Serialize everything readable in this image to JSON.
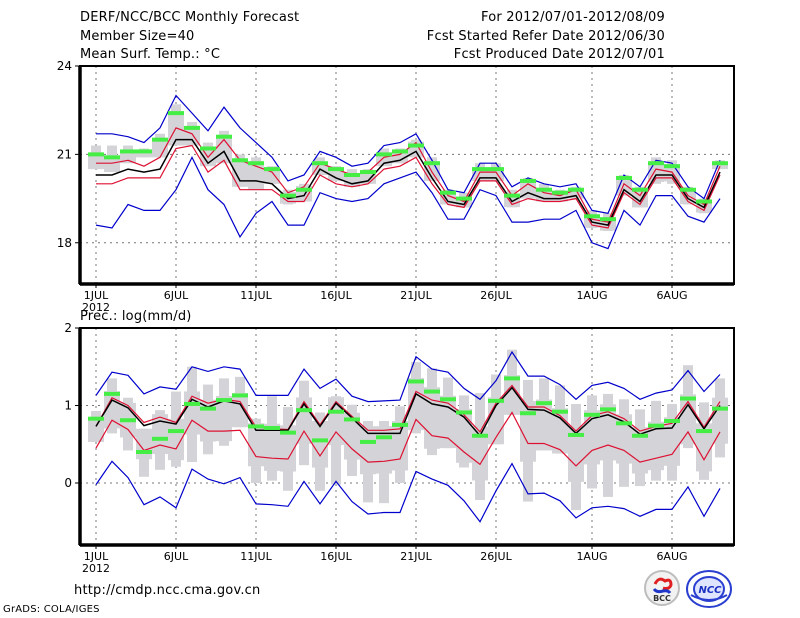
{
  "header": {
    "title": "DERF/NCC/BCC Monthly Forecast",
    "member_size": "Member Size=40",
    "top_variable": "Mean Surf. Temp.: °C",
    "period": "For 2012/07/01-2012/08/09",
    "started": "Fcst Started Refer Date 2012/06/30",
    "produced": "Fcst Produced Date 2012/07/01"
  },
  "footer": {
    "url": "http://cmdp.ncc.cma.gov.cn",
    "credit": "GrADS: COLA/IGES",
    "logo_bcc": "BCC",
    "logo_ncc": "NCC"
  },
  "colors": {
    "outer": "#0000cc",
    "inner": "#dd1133",
    "mean": "#000000",
    "median": "#44ee44",
    "box": "#d4d4d8",
    "grid": "#777777"
  },
  "chart_data": [
    {
      "type": "line",
      "title": "Mean Surf. Temp.: °C",
      "xlabel": "",
      "ylabel": "",
      "ylim": [
        16.6,
        24
      ],
      "yticks": [
        18,
        21,
        24
      ],
      "grid": true,
      "x_ticks": [
        {
          "day": 1,
          "label": "1JUL",
          "sub": "2012"
        },
        {
          "day": 6,
          "label": "6JUL",
          "sub": ""
        },
        {
          "day": 11,
          "label": "11JUL",
          "sub": ""
        },
        {
          "day": 16,
          "label": "16JUL",
          "sub": ""
        },
        {
          "day": 21,
          "label": "21JUL",
          "sub": ""
        },
        {
          "day": 26,
          "label": "26JUL",
          "sub": ""
        },
        {
          "day": 32,
          "label": "1AUG",
          "sub": ""
        },
        {
          "day": 37,
          "label": "6AUG",
          "sub": ""
        }
      ],
      "days": 40,
      "series": [
        {
          "name": "max",
          "role": "outer",
          "values": [
            21.7,
            21.7,
            21.6,
            21.4,
            21.9,
            23.0,
            22.4,
            21.8,
            22.6,
            21.9,
            21.4,
            20.9,
            20.1,
            20.3,
            21.1,
            20.9,
            20.6,
            20.7,
            21.3,
            21.4,
            21.7,
            20.8,
            19.8,
            19.7,
            20.7,
            20.7,
            19.9,
            20.2,
            20.0,
            19.9,
            20.0,
            19.1,
            19.0,
            20.3,
            19.9,
            20.8,
            20.7,
            19.9,
            19.5,
            20.8
          ]
        },
        {
          "name": "upper",
          "role": "inner",
          "values": [
            20.7,
            20.7,
            20.8,
            20.6,
            20.9,
            21.9,
            21.7,
            20.9,
            21.5,
            20.8,
            20.6,
            20.4,
            19.7,
            19.9,
            20.7,
            20.5,
            20.3,
            20.4,
            20.9,
            21.0,
            21.4,
            20.4,
            19.6,
            19.4,
            20.4,
            20.4,
            19.6,
            20.0,
            19.7,
            19.6,
            19.8,
            18.8,
            18.7,
            20.0,
            19.6,
            20.5,
            20.4,
            19.6,
            19.3,
            20.6
          ]
        },
        {
          "name": "mean",
          "role": "mean",
          "values": [
            20.3,
            20.3,
            20.5,
            20.4,
            20.5,
            21.5,
            21.5,
            20.7,
            21.1,
            20.1,
            20.1,
            20.0,
            19.5,
            19.6,
            20.5,
            20.2,
            20.0,
            20.1,
            20.7,
            20.8,
            21.1,
            20.2,
            19.4,
            19.3,
            20.2,
            20.2,
            19.4,
            19.7,
            19.5,
            19.5,
            19.6,
            18.7,
            18.6,
            19.8,
            19.4,
            20.3,
            20.3,
            19.5,
            19.2,
            20.4
          ]
        },
        {
          "name": "lower",
          "role": "inner",
          "values": [
            20.0,
            20.0,
            20.2,
            20.2,
            20.2,
            21.2,
            21.3,
            20.4,
            20.8,
            19.8,
            19.8,
            19.8,
            19.4,
            19.4,
            20.3,
            20.0,
            19.9,
            20.0,
            20.5,
            20.6,
            20.9,
            20.0,
            19.3,
            19.2,
            20.1,
            20.1,
            19.3,
            19.5,
            19.4,
            19.4,
            19.5,
            18.6,
            18.5,
            19.7,
            19.3,
            20.2,
            20.2,
            19.4,
            19.1,
            20.3
          ]
        },
        {
          "name": "min",
          "role": "outer",
          "values": [
            18.6,
            18.5,
            19.3,
            19.1,
            19.1,
            19.8,
            20.9,
            19.8,
            19.3,
            18.2,
            19.0,
            19.4,
            18.6,
            18.6,
            19.7,
            19.5,
            19.4,
            19.5,
            20.0,
            20.2,
            20.4,
            19.7,
            18.8,
            18.8,
            19.8,
            19.6,
            18.7,
            18.7,
            18.8,
            18.8,
            19.1,
            18.0,
            17.8,
            19.1,
            18.6,
            19.6,
            19.6,
            18.9,
            18.7,
            19.5
          ]
        },
        {
          "name": "median",
          "role": "median",
          "values": [
            21.0,
            20.9,
            21.1,
            21.1,
            21.5,
            22.4,
            21.9,
            21.2,
            21.6,
            20.8,
            20.7,
            20.5,
            19.6,
            19.8,
            20.7,
            20.5,
            20.3,
            20.4,
            21.0,
            21.1,
            21.3,
            20.7,
            19.7,
            19.5,
            20.5,
            20.5,
            19.6,
            20.1,
            19.8,
            19.7,
            19.8,
            18.9,
            18.8,
            20.2,
            19.8,
            20.7,
            20.6,
            19.8,
            19.4,
            20.7
          ]
        },
        {
          "name": "box_hi",
          "role": "box",
          "values": [
            21.3,
            21.3,
            21.3,
            21.2,
            21.7,
            22.7,
            22.1,
            21.4,
            21.8,
            21.0,
            20.9,
            20.6,
            19.8,
            20.0,
            20.9,
            20.6,
            20.5,
            20.5,
            21.2,
            21.2,
            21.5,
            20.9,
            19.8,
            19.7,
            20.7,
            20.7,
            19.8,
            20.2,
            20.0,
            19.8,
            19.9,
            19.1,
            19.0,
            20.3,
            19.9,
            20.9,
            20.8,
            19.9,
            19.5,
            20.8
          ]
        },
        {
          "name": "box_lo",
          "role": "box",
          "values": [
            20.5,
            20.4,
            20.7,
            20.9,
            20.9,
            21.3,
            21.3,
            20.6,
            20.7,
            19.9,
            19.8,
            20.0,
            19.3,
            19.4,
            20.3,
            20.1,
            19.9,
            20.0,
            20.6,
            20.7,
            20.9,
            20.1,
            19.3,
            19.2,
            20.1,
            20.1,
            19.2,
            19.5,
            19.4,
            19.4,
            19.5,
            18.5,
            18.4,
            19.6,
            19.2,
            20.0,
            20.0,
            19.3,
            19.0,
            20.5
          ]
        }
      ]
    },
    {
      "type": "line",
      "title": "Prec.: log(mm/d)",
      "xlabel": "",
      "ylabel": "",
      "ylim": [
        -0.8,
        2
      ],
      "yticks": [
        0,
        1,
        2
      ],
      "grid": true,
      "x_ticks": [
        {
          "day": 1,
          "label": "1JUL",
          "sub": "2012"
        },
        {
          "day": 6,
          "label": "6JUL",
          "sub": ""
        },
        {
          "day": 11,
          "label": "11JUL",
          "sub": ""
        },
        {
          "day": 16,
          "label": "16JUL",
          "sub": ""
        },
        {
          "day": 21,
          "label": "21JUL",
          "sub": ""
        },
        {
          "day": 26,
          "label": "26JUL",
          "sub": ""
        },
        {
          "day": 32,
          "label": "1AUG",
          "sub": ""
        },
        {
          "day": 37,
          "label": "6AUG",
          "sub": ""
        }
      ],
      "days": 40,
      "series": [
        {
          "name": "max",
          "role": "outer",
          "values": [
            1.13,
            1.43,
            1.39,
            1.15,
            1.24,
            1.21,
            1.5,
            1.44,
            1.5,
            1.47,
            1.13,
            1.13,
            1.13,
            1.47,
            1.22,
            1.34,
            1.12,
            1.05,
            1.06,
            1.07,
            1.63,
            1.47,
            1.43,
            1.22,
            1.08,
            1.32,
            1.69,
            1.38,
            1.38,
            1.27,
            1.08,
            1.26,
            1.3,
            1.22,
            1.08,
            1.16,
            1.2,
            1.45,
            1.18,
            1.4
          ]
        },
        {
          "name": "upper",
          "role": "inner",
          "values": [
            0.73,
            1.1,
            1.0,
            0.78,
            0.85,
            0.78,
            1.12,
            1.03,
            1.08,
            1.05,
            0.72,
            0.7,
            0.69,
            1.05,
            0.75,
            1.05,
            0.86,
            0.68,
            0.68,
            0.7,
            1.18,
            1.07,
            1.03,
            0.88,
            0.66,
            1.03,
            1.26,
            0.98,
            0.98,
            0.87,
            0.67,
            0.87,
            0.92,
            0.83,
            0.67,
            0.73,
            0.77,
            1.05,
            0.72,
            1.05
          ]
        },
        {
          "name": "mean",
          "role": "mean",
          "values": [
            0.73,
            1.07,
            0.97,
            0.74,
            0.8,
            0.76,
            1.08,
            0.98,
            1.06,
            1.02,
            0.68,
            0.68,
            0.68,
            1.02,
            0.73,
            1.03,
            0.84,
            0.64,
            0.64,
            0.64,
            1.15,
            1.02,
            0.98,
            0.85,
            0.61,
            1.0,
            1.23,
            0.95,
            0.94,
            0.84,
            0.64,
            0.83,
            0.88,
            0.79,
            0.63,
            0.7,
            0.71,
            1.01,
            0.7,
            1.0
          ]
        },
        {
          "name": "lower",
          "role": "inner",
          "values": [
            0.45,
            0.81,
            0.69,
            0.42,
            0.49,
            0.44,
            0.81,
            0.67,
            0.67,
            0.68,
            0.34,
            0.32,
            0.31,
            0.67,
            0.35,
            0.66,
            0.44,
            0.27,
            0.28,
            0.31,
            0.82,
            0.61,
            0.58,
            0.4,
            0.24,
            0.59,
            0.91,
            0.51,
            0.51,
            0.43,
            0.22,
            0.42,
            0.49,
            0.42,
            0.27,
            0.32,
            0.37,
            0.66,
            0.3,
            0.66
          ]
        },
        {
          "name": "min",
          "role": "outer",
          "values": [
            -0.02,
            0.28,
            0.07,
            -0.28,
            -0.18,
            -0.32,
            0.18,
            0.05,
            -0.01,
            0.07,
            -0.27,
            -0.28,
            -0.3,
            0.02,
            -0.27,
            0.02,
            -0.24,
            -0.4,
            -0.38,
            -0.38,
            0.15,
            0.05,
            -0.03,
            -0.23,
            -0.5,
            -0.1,
            0.25,
            -0.14,
            -0.13,
            -0.23,
            -0.45,
            -0.32,
            -0.3,
            -0.33,
            -0.43,
            -0.34,
            -0.34,
            -0.05,
            -0.43,
            -0.07
          ]
        },
        {
          "name": "median",
          "role": "median",
          "values": [
            0.83,
            1.15,
            0.81,
            0.4,
            0.57,
            0.67,
            1.02,
            0.96,
            1.07,
            1.13,
            0.73,
            0.71,
            0.65,
            0.94,
            0.55,
            0.92,
            0.82,
            0.53,
            0.59,
            0.75,
            1.31,
            1.18,
            1.08,
            0.91,
            0.61,
            1.06,
            1.35,
            0.9,
            1.03,
            0.92,
            0.62,
            0.88,
            0.95,
            0.77,
            0.61,
            0.74,
            0.8,
            1.09,
            0.67,
            0.96
          ]
        },
        {
          "name": "box_hi",
          "role": "box",
          "values": [
            0.93,
            1.35,
            1.1,
            0.7,
            0.94,
            1.18,
            1.5,
            1.27,
            1.35,
            1.37,
            0.83,
            1.12,
            0.98,
            1.32,
            0.91,
            1.12,
            1.01,
            0.8,
            0.8,
            0.99,
            1.56,
            1.48,
            1.36,
            1.13,
            1.16,
            1.4,
            1.72,
            1.33,
            1.35,
            1.26,
            1.02,
            1.13,
            1.15,
            1.08,
            0.95,
            1.06,
            1.02,
            1.52,
            1.04,
            1.35
          ]
        },
        {
          "name": "box_lo",
          "role": "box",
          "values": [
            0.53,
            0.64,
            0.42,
            0.08,
            0.17,
            0.21,
            0.27,
            0.37,
            0.48,
            0.72,
            0.0,
            0.03,
            -0.1,
            0.23,
            -0.1,
            -0.02,
            0.09,
            -0.25,
            -0.26,
            0.0,
            0.64,
            0.36,
            0.45,
            0.2,
            -0.22,
            0.5,
            0.88,
            -0.24,
            0.42,
            0.38,
            -0.35,
            -0.07,
            -0.18,
            -0.05,
            -0.04,
            0.03,
            0.03,
            0.45,
            0.04,
            0.33
          ]
        }
      ]
    }
  ]
}
